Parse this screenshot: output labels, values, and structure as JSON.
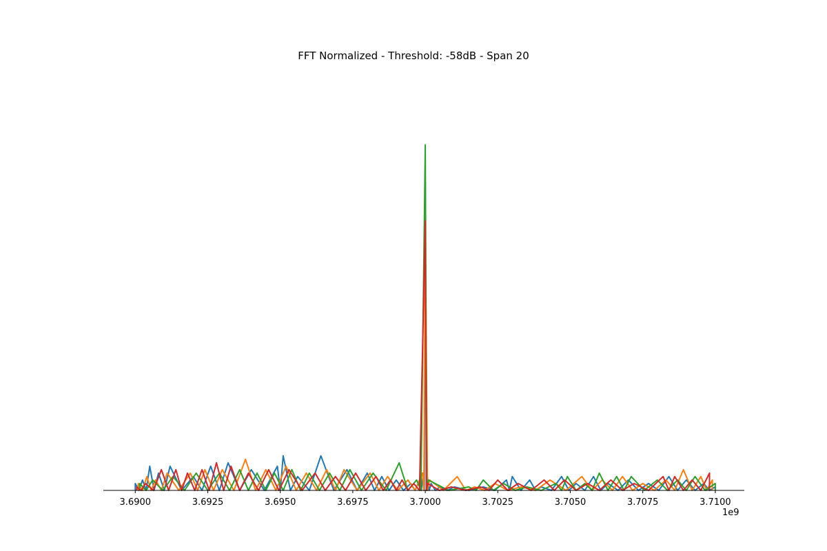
{
  "chart_data": {
    "type": "line",
    "title": "FFT Normalized - Threshold: -58dB - Span 20",
    "xlabel": "",
    "ylabel": "",
    "x_offset_label": "1e9",
    "xlim": [
      3688900000,
      3711000000
    ],
    "ylim": [
      0,
      1.12
    ],
    "x_ticks": [
      3690000000,
      3692500000,
      3695000000,
      3697500000,
      3700000000,
      3702500000,
      3705000000,
      3707500000,
      3710000000
    ],
    "x_tick_labels": [
      "3.6900",
      "3.6925",
      "3.6950",
      "3.6975",
      "3.7000",
      "3.7025",
      "3.7050",
      "3.7075",
      "3.7100"
    ],
    "y_axis_visible": false,
    "grid": false,
    "legend": "none",
    "series": [
      {
        "color": "#1f77b4",
        "x": [
          3690000000,
          3690250000,
          3690500000,
          3690800000,
          3691200000,
          3692000000,
          3692600000,
          3693200000,
          3694000000,
          3694900000,
          3695100000,
          3695600000,
          3696400000,
          3697300000,
          3698000000,
          3698500000,
          3699000000,
          3699500000,
          3699800000,
          3699930000,
          3700000000,
          3700070000,
          3700200000,
          3700500000,
          3701000000,
          3702000000,
          3702800000,
          3703000000,
          3703600000,
          3704000000,
          3704700000,
          3705200000,
          3705800000,
          3706300000,
          3707000000,
          3707700000,
          3708400000,
          3709000000,
          3709600000,
          3710000000
        ],
        "y": [
          0.02,
          0.03,
          0.07,
          0.05,
          0.07,
          0.04,
          0.07,
          0.08,
          0.06,
          0.07,
          0.1,
          0.04,
          0.1,
          0.06,
          0.05,
          0.04,
          0.03,
          0.02,
          0.03,
          0.05,
          0.89,
          0.04,
          0.02,
          0.01,
          0.01,
          0.01,
          0.03,
          0.04,
          0.03,
          0.01,
          0.04,
          0.02,
          0.04,
          0.02,
          0.03,
          0.02,
          0.04,
          0.03,
          0.02,
          0.01
        ]
      },
      {
        "color": "#ff7f0e",
        "x": [
          3690100000,
          3690400000,
          3690700000,
          3691100000,
          3691900000,
          3692400000,
          3693000000,
          3693800000,
          3694500000,
          3695200000,
          3695900000,
          3696600000,
          3697200000,
          3698100000,
          3698700000,
          3699400000,
          3699900000,
          3700000000,
          3700150000,
          3701100000,
          3701700000,
          3702400000,
          3703300000,
          3704300000,
          3705400000,
          3706100000,
          3706800000,
          3707500000,
          3708300000,
          3708900000,
          3709500000,
          3709900000
        ],
        "y": [
          0.02,
          0.04,
          0.03,
          0.05,
          0.05,
          0.06,
          0.06,
          0.09,
          0.06,
          0.07,
          0.05,
          0.06,
          0.06,
          0.05,
          0.04,
          0.03,
          0.05,
          0.75,
          0.03,
          0.04,
          0.01,
          0.02,
          0.01,
          0.03,
          0.04,
          0.03,
          0.04,
          0.02,
          0.03,
          0.06,
          0.04,
          0.03
        ]
      },
      {
        "color": "#2ca02c",
        "x": [
          3690150000,
          3690600000,
          3691300000,
          3692100000,
          3692900000,
          3693600000,
          3694200000,
          3694800000,
          3695400000,
          3696000000,
          3696700000,
          3697400000,
          3698200000,
          3699100000,
          3699700000,
          3700000000,
          3700100000,
          3701500000,
          3702000000,
          3702700000,
          3703500000,
          3704500000,
          3704900000,
          3705500000,
          3706000000,
          3706600000,
          3707100000,
          3708000000,
          3708700000,
          3709300000,
          3710000000
        ],
        "y": [
          0.02,
          0.03,
          0.04,
          0.05,
          0.05,
          0.06,
          0.05,
          0.05,
          0.06,
          0.05,
          0.05,
          0.06,
          0.05,
          0.08,
          0.03,
          1.0,
          0.03,
          0.01,
          0.03,
          0.02,
          0.01,
          0.02,
          0.04,
          0.02,
          0.05,
          0.04,
          0.04,
          0.03,
          0.03,
          0.04,
          0.02
        ]
      },
      {
        "color": "#d62728",
        "x": [
          3690050000,
          3690350000,
          3690900000,
          3691400000,
          3691800000,
          3692300000,
          3692800000,
          3693300000,
          3693900000,
          3694600000,
          3695300000,
          3696200000,
          3696900000,
          3697600000,
          3698300000,
          3698800000,
          3699200000,
          3699600000,
          3700000000,
          3700080000,
          3700900000,
          3701900000,
          3702500000,
          3703200000,
          3704100000,
          3704800000,
          3705600000,
          3706400000,
          3707200000,
          3708200000,
          3708600000,
          3709200000,
          3709800000
        ],
        "y": [
          0.01,
          0.02,
          0.06,
          0.06,
          0.05,
          0.06,
          0.08,
          0.07,
          0.05,
          0.06,
          0.06,
          0.05,
          0.04,
          0.05,
          0.04,
          0.03,
          0.03,
          0.02,
          0.78,
          0.02,
          0.01,
          0.01,
          0.03,
          0.02,
          0.03,
          0.03,
          0.02,
          0.03,
          0.02,
          0.04,
          0.04,
          0.03,
          0.05
        ]
      }
    ]
  }
}
